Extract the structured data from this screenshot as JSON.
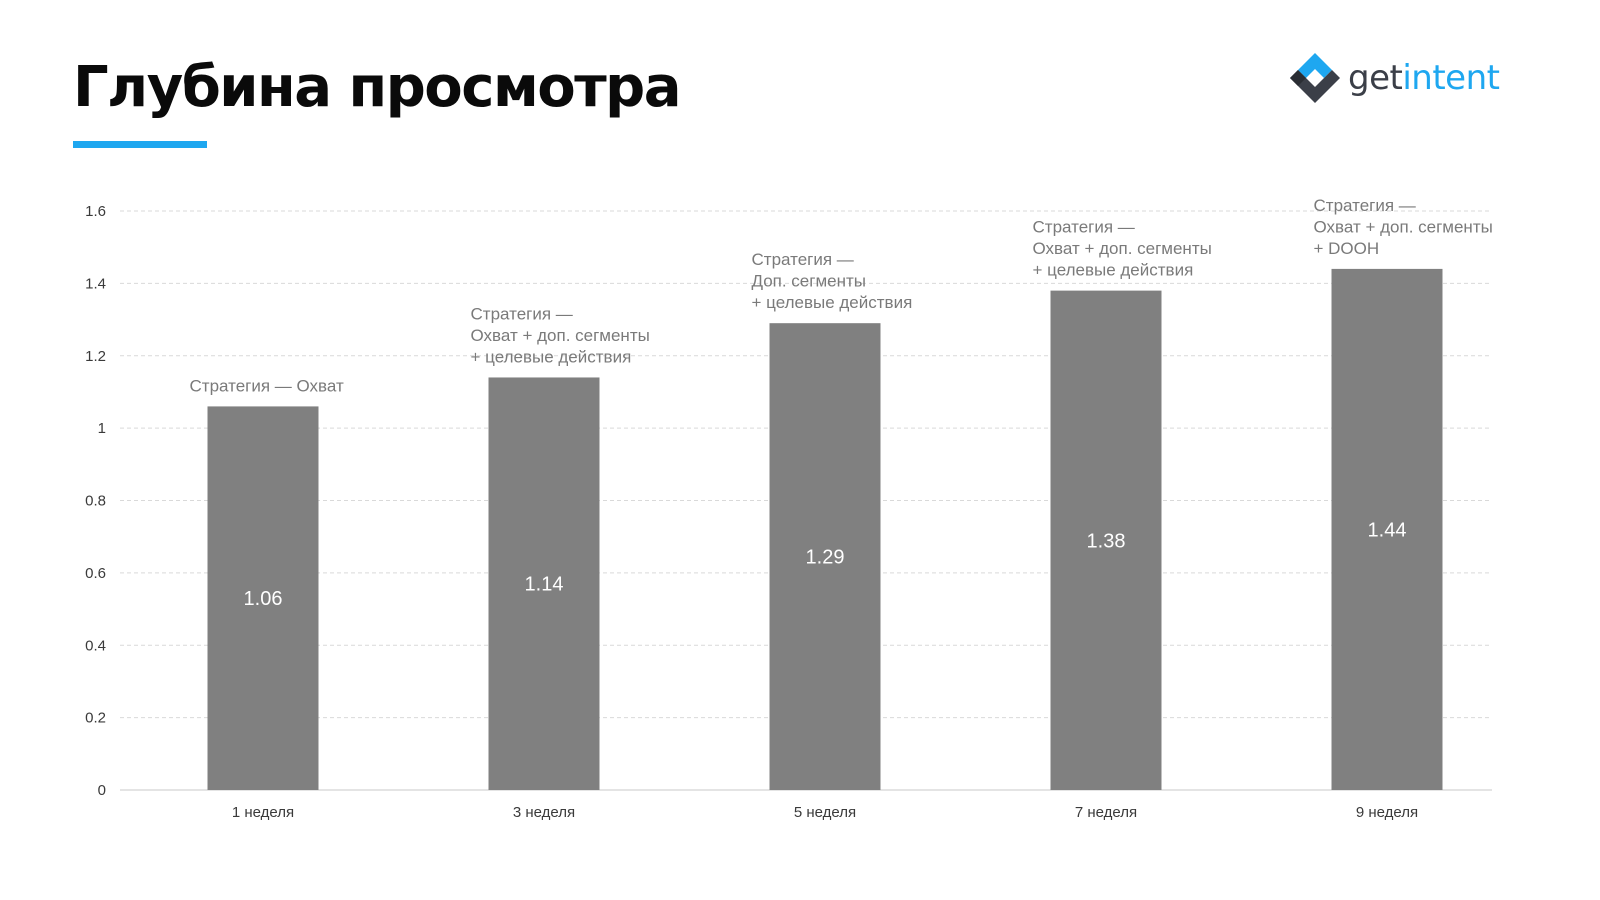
{
  "header": {
    "title": "Глубина просмотра"
  },
  "logo": {
    "text_part1": "get",
    "text_part2": "intent",
    "accent_color": "#1ea7f0",
    "dark_color": "#3b3f48"
  },
  "chart_data": {
    "type": "bar",
    "title": "",
    "xlabel": "",
    "ylabel": "",
    "categories": [
      "1 неделя",
      "3 неделя",
      "5 неделя",
      "7 неделя",
      "9 неделя"
    ],
    "values": [
      1.06,
      1.14,
      1.29,
      1.38,
      1.44
    ],
    "value_labels": [
      "1.06",
      "1.14",
      "1.29",
      "1.38",
      "1.44"
    ],
    "annotations": [
      [
        "Стратегия — Охват"
      ],
      [
        "Стратегия —",
        "Охват + доп. сегменты",
        "+ целевые действия"
      ],
      [
        "Стратегия —",
        "Доп. сегменты",
        "+ целевые действия"
      ],
      [
        "Стратегия —",
        "Охват + доп. сегменты",
        "+ целевые действия"
      ],
      [
        "Стратегия —",
        "Охват + доп. сегменты",
        "+ DOOH"
      ]
    ],
    "ylim": [
      0,
      1.6
    ],
    "yticks": [
      0,
      0.2,
      0.4,
      0.6,
      0.8,
      1,
      1.2,
      1.4,
      1.6
    ],
    "ytick_labels": [
      "0",
      "0.2",
      "0.4",
      "0.6",
      "0.8",
      "1",
      "1.2",
      "1.4",
      "1.6"
    ],
    "grid": true,
    "bar_color": "#808080",
    "grid_color": "#d9d9d9"
  }
}
